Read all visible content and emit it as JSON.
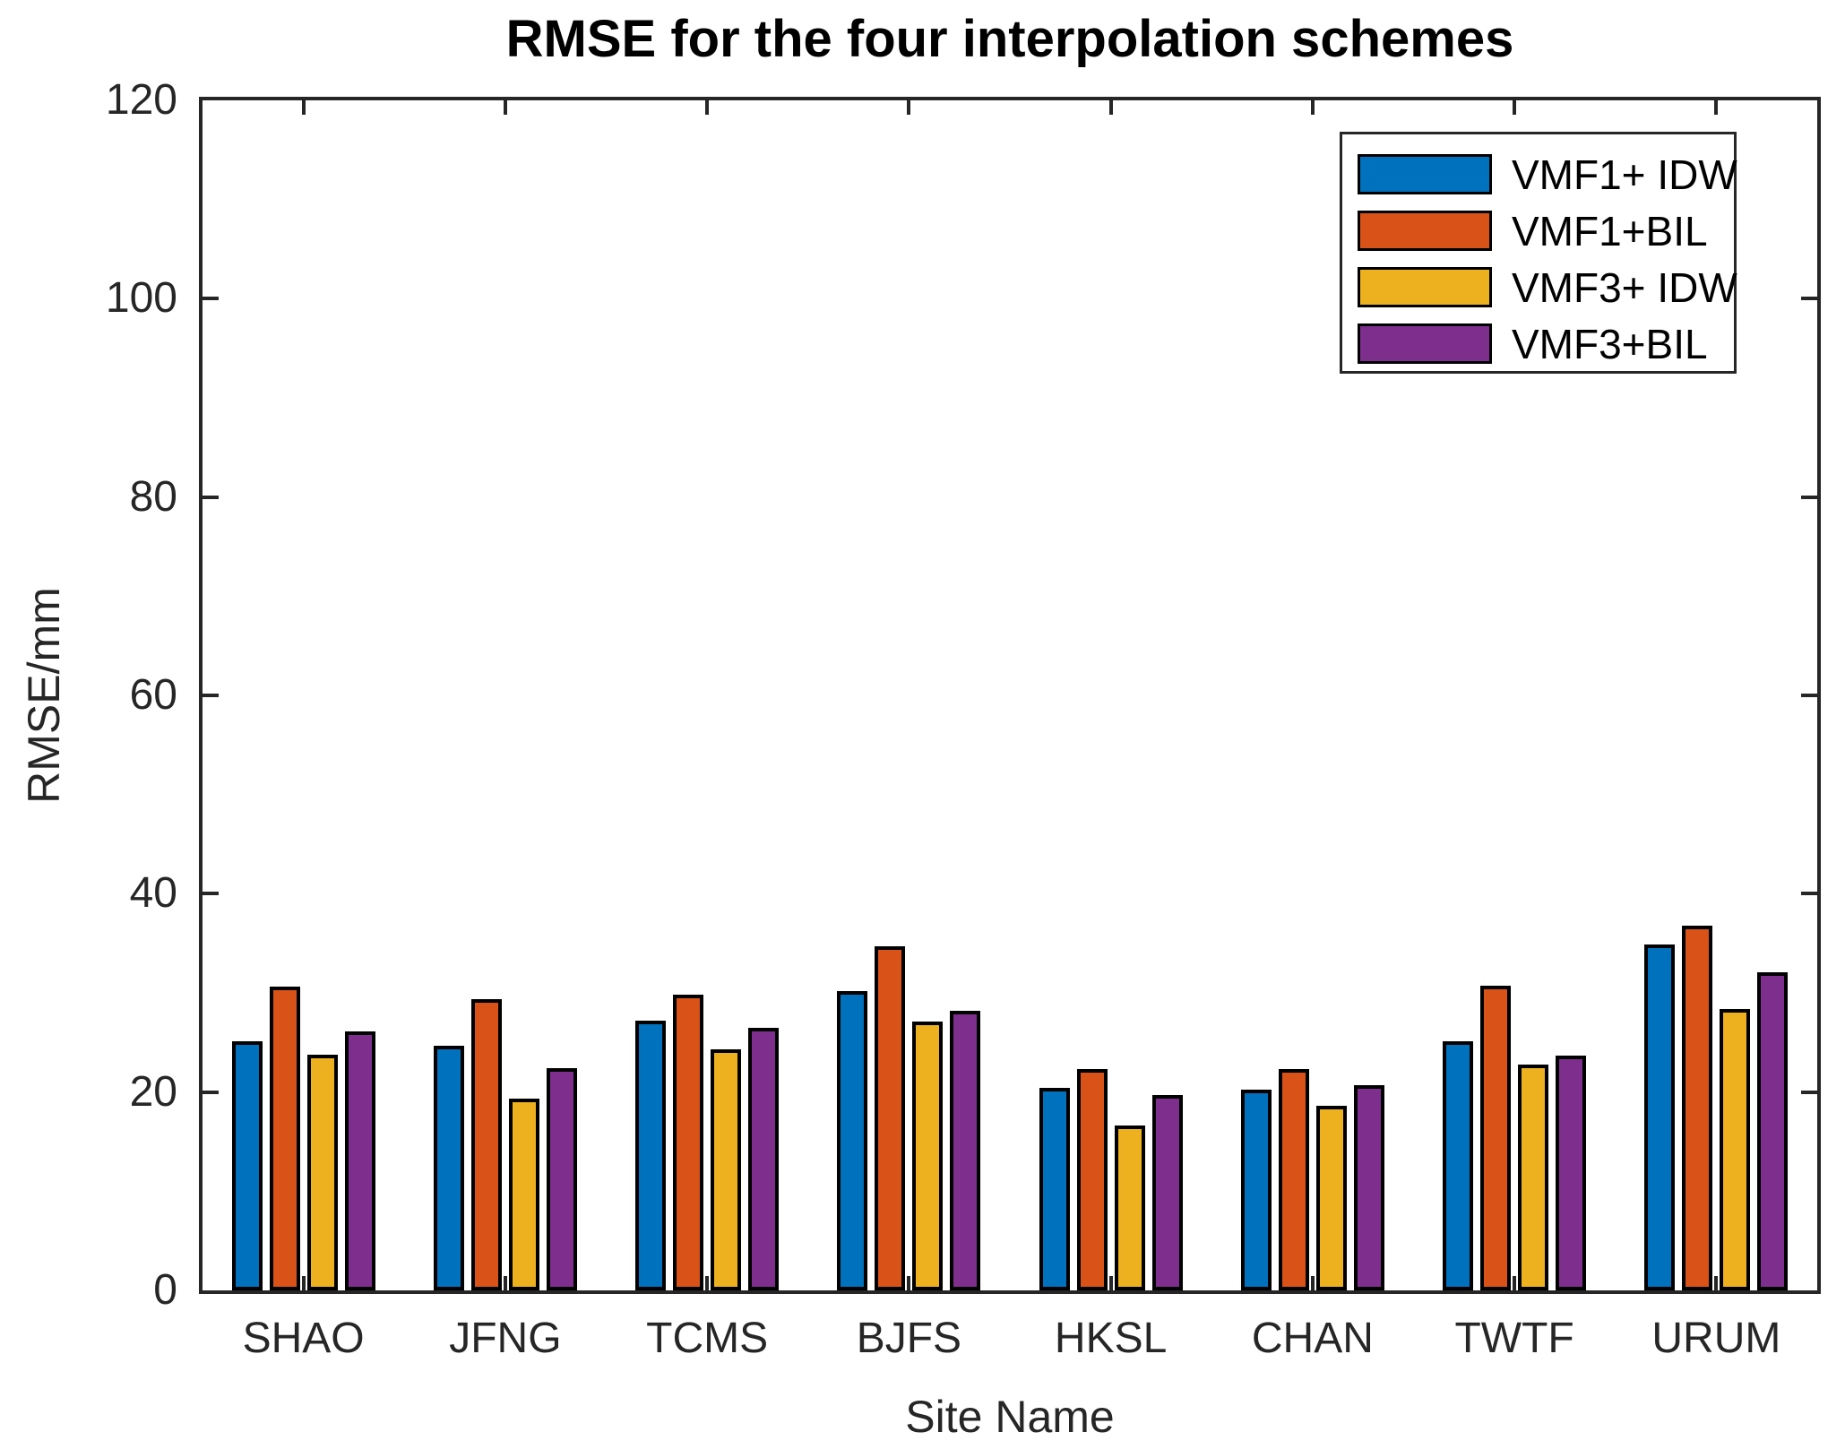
{
  "chart_data": {
    "type": "bar",
    "title": "RMSE for the four interpolation schemes",
    "xlabel": "Site Name",
    "ylabel": "RMSE/mm",
    "ylim": [
      0,
      120
    ],
    "yticks": [
      0,
      20,
      40,
      60,
      80,
      100,
      120
    ],
    "grid": false,
    "legend_position": "top-right",
    "axis_color": "#262626",
    "bar_edge_color": "#000000",
    "categories": [
      "SHAO",
      "JFNG",
      "TCMS",
      "BJFS",
      "HKSL",
      "CHAN",
      "TWTF",
      "URUM"
    ],
    "series": [
      {
        "name": "VMF1+ IDW",
        "color": "#0072BD",
        "values": [
          25.1,
          24.7,
          27.2,
          30.2,
          20.4,
          20.2,
          25.1,
          34.9
        ]
      },
      {
        "name": "VMF1+BIL",
        "color": "#D95319",
        "values": [
          30.6,
          29.4,
          29.8,
          34.7,
          22.3,
          22.3,
          30.7,
          36.8
        ]
      },
      {
        "name": "VMF3+ IDW",
        "color": "#EDB120",
        "values": [
          23.8,
          19.3,
          24.3,
          27.1,
          16.6,
          18.6,
          22.8,
          28.4
        ]
      },
      {
        "name": "VMF3+BIL",
        "color": "#7E2F8E",
        "values": [
          26.1,
          22.4,
          26.5,
          28.2,
          19.7,
          20.7,
          23.7,
          32.1
        ]
      }
    ]
  }
}
